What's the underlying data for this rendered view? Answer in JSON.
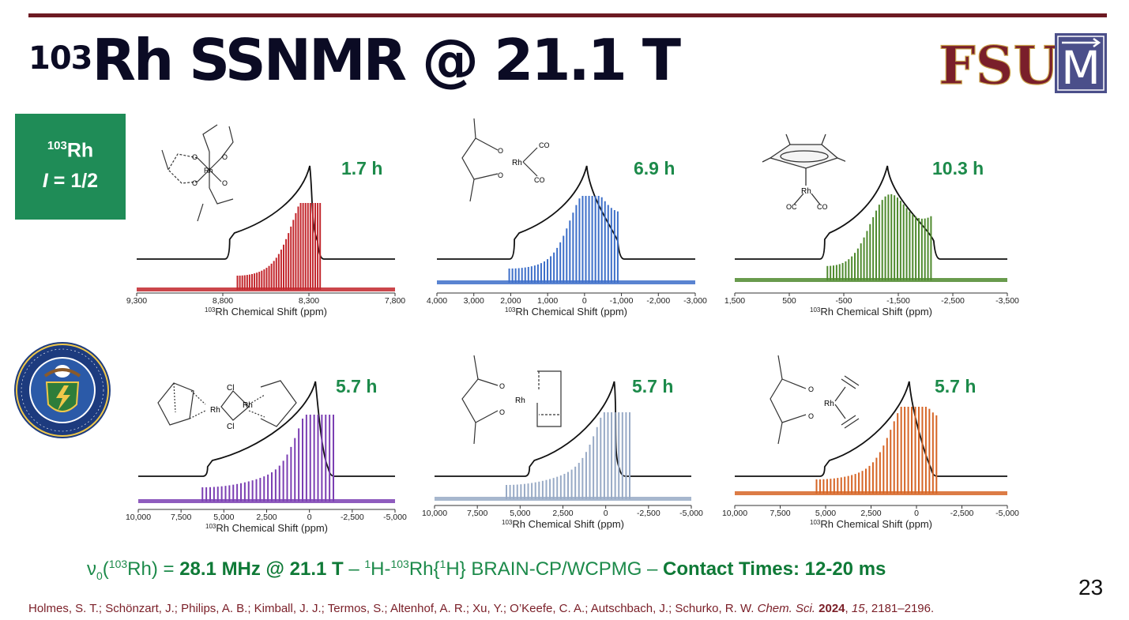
{
  "slide": {
    "title_sup": "103",
    "title_main": "Rh SSNMR @ 21.1 T",
    "page_number": "23",
    "logo_text": "FSU",
    "logo_badge": "M"
  },
  "info_box": {
    "nucleus_sup": "103",
    "nucleus": "Rh",
    "spin_symbol": "I",
    "spin_value": " = 1/2"
  },
  "spectra": [
    {
      "time": "1.7 h",
      "color": "#c2262c",
      "ticks": [
        "9,300",
        "8,800",
        "8,300",
        "7,800"
      ]
    },
    {
      "time": "6.9 h",
      "color": "#3d6fc9",
      "ticks": [
        "4,000",
        "3,000",
        "2,000",
        "1,000",
        "0",
        "-1,000",
        "-2,000",
        "-3,000"
      ]
    },
    {
      "time": "10.3 h",
      "color": "#4f8a2e",
      "ticks": [
        "1,500",
        "500",
        "-500",
        "-1,500",
        "-2,500",
        "-3,500"
      ]
    },
    {
      "time": "5.7 h",
      "color": "#7b3fb3",
      "ticks": [
        "10,000",
        "7,500",
        "5,000",
        "2,500",
        "0",
        "-2,500",
        "-5,000"
      ]
    },
    {
      "time": "5.7 h",
      "color": "#98aac6",
      "ticks": [
        "10,000",
        "7,500",
        "5,000",
        "2,500",
        "0",
        "-2,500",
        "-5,000"
      ]
    },
    {
      "time": "5.7 h",
      "color": "#d66526",
      "ticks": [
        "10,000",
        "7,500",
        "5,000",
        "2,500",
        "0",
        "-2,500",
        "-5,000"
      ]
    }
  ],
  "axis": {
    "label_sup": "103",
    "label_main": "Rh Chemical Shift (ppm)"
  },
  "molecule_labels": {
    "rh": "Rh",
    "co": "CO",
    "oc": "OC",
    "cl": "Cl",
    "o": "O"
  },
  "footer": {
    "nu": "ν",
    "nu_sub": "0",
    "paren_open": "(",
    "nuc_sup": "103",
    "nuc": "Rh) = ",
    "freq": "28.1 MHz @ 21.1 T",
    "dash1": " – ",
    "h_sup": "1",
    "seq1": "H-",
    "rh_sup": "103",
    "seq2": "Rh{",
    "h2_sup": "1",
    "seq3": "H} BRAIN-CP/WCPMG – ",
    "contact": "Contact Times: 12-20 ms"
  },
  "citation": {
    "authors": "Holmes, S. T.; Schönzart, J.; Philips, A. B.; Kimball, J. J.; Termos, S.; Altenhof, A. R.; Xu, Y.; O’Keefe, C. A.; Autschbach, J.; Schurko, R. W. ",
    "journal": "Chem. Sci.",
    "year": "2024",
    "sep": ", ",
    "volume": "15",
    "pages": ", 2181–2196."
  }
}
